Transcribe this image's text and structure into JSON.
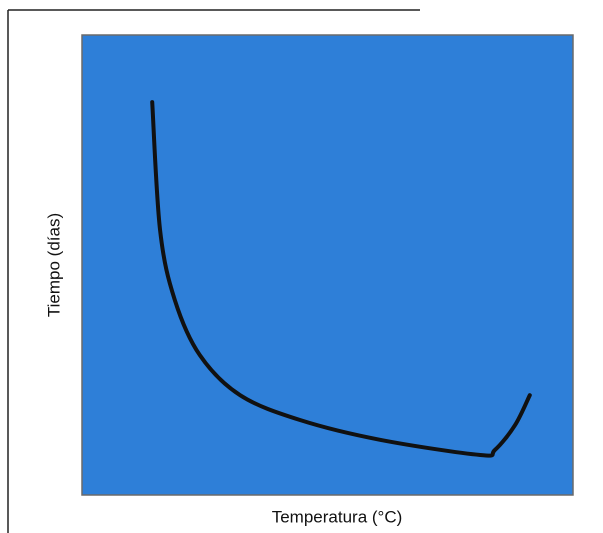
{
  "chart_data": {
    "type": "line",
    "x_label": "Temperatura (°C)",
    "y_label": "Tiempo (días)",
    "x": [
      14.3,
      15.9,
      18.9,
      24.0,
      32.2,
      44.4,
      60.7,
      81.1,
      84.1,
      88.2,
      91.2
    ],
    "series": [
      {
        "color": "#111111",
        "values": [
          85.4,
          57.6,
          42.4,
          30.4,
          21.7,
          16.3,
          12.0,
          8.7,
          9.8,
          15.2,
          21.7
        ]
      }
    ],
    "xlim": [
      0,
      100
    ],
    "ylim": [
      0,
      100
    ],
    "background": "#2e7fd8"
  }
}
